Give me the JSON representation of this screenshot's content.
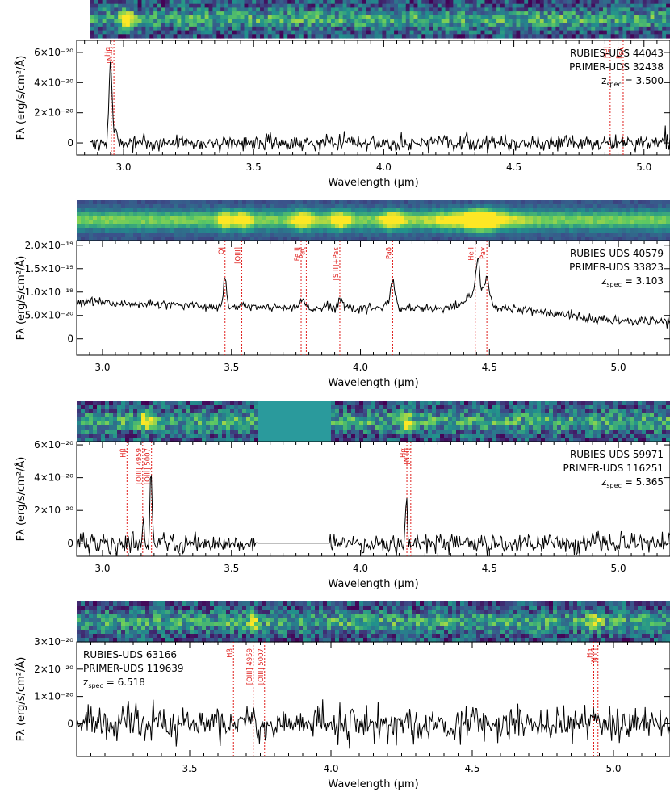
{
  "colors": {
    "spectrum": "#000000",
    "line_marker": "#e0201e",
    "masked_region": "#2a9a9c"
  },
  "chart_data": [
    {
      "type": "line",
      "name_lines": [
        "RUBIES-UDS 44043",
        "PRIMER-UDS 32438"
      ],
      "z_prefix": "z",
      "z_sub": "spec",
      "z_value": "= 3.500",
      "info_position": "top-right",
      "xlabel": "Wavelength (μm)",
      "ylabel": "Fλ (erg/s/cm²/Å)",
      "xlim": [
        2.82,
        5.1
      ],
      "ylim": [
        -8e-21,
        6.8e-20
      ],
      "xticks": [
        3.0,
        3.5,
        4.0,
        4.5,
        5.0
      ],
      "xtick_labels": [
        "3.0",
        "3.5",
        "4.0",
        "4.5",
        "5.0"
      ],
      "yticks": [
        0,
        2e-20,
        4e-20,
        6e-20
      ],
      "ytick_labels": [
        "0",
        "2×10⁻²⁰",
        "4×10⁻²⁰",
        "6×10⁻²⁰"
      ],
      "spectrum_range": [
        2.87,
        5.1
      ],
      "features": [
        {
          "w": 2.95,
          "h": 5.3e-20,
          "s": 0.006
        },
        {
          "w": 2.972,
          "h": 1e-20,
          "s": 0.005
        }
      ],
      "continuum": [
        [
          2.87,
          0.0
        ],
        [
          5.1,
          0.0
        ]
      ],
      "noise": 2.5e-21,
      "seed": 11,
      "masked": [],
      "lines": [
        {
          "w": 2.953,
          "label": "Hα"
        },
        {
          "w": 2.963,
          "label": "[N II]"
        },
        {
          "w": 4.87,
          "label": "HeI"
        },
        {
          "w": 4.92,
          "label": "Paγ"
        }
      ]
    },
    {
      "type": "line",
      "name_lines": [
        "RUBIES-UDS 40579",
        "PRIMER-UDS 33823"
      ],
      "z_prefix": "z",
      "z_sub": "spec",
      "z_value": "= 3.103",
      "info_position": "top-right",
      "xlabel": "Wavelength (μm)",
      "ylabel": "Fλ (erg/s/cm²/Å)",
      "xlim": [
        2.9,
        5.2
      ],
      "ylim": [
        -3.5e-20,
        2.1e-19
      ],
      "xticks": [
        3.0,
        3.5,
        4.0,
        4.5,
        5.0
      ],
      "xtick_labels": [
        "3.0",
        "3.5",
        "4.0",
        "4.5",
        "5.0"
      ],
      "yticks": [
        0,
        5e-20,
        1e-19,
        1.5e-19,
        2e-19
      ],
      "ytick_labels": [
        "0",
        "5.0×10⁻²⁰",
        "1.0×10⁻¹⁹",
        "1.5×10⁻¹⁹",
        "2.0×10⁻¹⁹"
      ],
      "spectrum_range": [
        2.9,
        5.2
      ],
      "features": [
        {
          "w": 3.475,
          "h": 6.2e-20,
          "s": 0.006
        },
        {
          "w": 3.545,
          "h": 1.2e-20,
          "s": 0.008
        },
        {
          "w": 3.775,
          "h": 1.4e-20,
          "s": 0.01
        },
        {
          "w": 3.92,
          "h": 2e-20,
          "s": 0.009
        },
        {
          "w": 4.125,
          "h": 5.5e-20,
          "s": 0.01
        },
        {
          "w": 4.44,
          "h": 3e-20,
          "s": 0.035
        },
        {
          "w": 4.455,
          "h": 7.5e-20,
          "s": 0.008
        },
        {
          "w": 4.49,
          "h": 5.5e-20,
          "s": 0.01
        }
      ],
      "continuum": [
        [
          2.9,
          7.8e-20
        ],
        [
          3.5,
          6.8e-20
        ],
        [
          4.0,
          6.4e-20
        ],
        [
          4.6,
          6.5e-20
        ],
        [
          4.9,
          4.2e-20
        ],
        [
          5.2,
          3.8e-20
        ]
      ],
      "noise": 5e-21,
      "seed": 23,
      "masked": [],
      "lines": [
        {
          "w": 3.475,
          "label": "OI"
        },
        {
          "w": 3.54,
          "label": "[OIII]"
        },
        {
          "w": 3.77,
          "label": "Fe II"
        },
        {
          "w": 3.79,
          "label": "Paζ"
        },
        {
          "w": 3.92,
          "label": "[S II]+Paε"
        },
        {
          "w": 4.125,
          "label": "Paδ"
        },
        {
          "w": 4.445,
          "label": "He I"
        },
        {
          "w": 4.49,
          "label": "Paγ"
        }
      ]
    },
    {
      "type": "line",
      "name_lines": [
        "RUBIES-UDS 59971",
        "PRIMER-UDS 116251"
      ],
      "z_prefix": "z",
      "z_sub": "spec",
      "z_value": "= 5.365",
      "info_position": "top-right",
      "xlabel": "Wavelength (μm)",
      "ylabel": "Fλ (erg/s/cm²/Å)",
      "xlim": [
        2.9,
        5.2
      ],
      "ylim": [
        -8e-21,
        6.2e-20
      ],
      "xticks": [
        3.0,
        3.5,
        4.0,
        4.5,
        5.0
      ],
      "xtick_labels": [
        "3.0",
        "3.5",
        "4.0",
        "4.5",
        "5.0"
      ],
      "yticks": [
        0,
        2e-20,
        4e-20,
        6e-20
      ],
      "ytick_labels": [
        "0",
        "2×10⁻²⁰",
        "4×10⁻²⁰",
        "6×10⁻²⁰"
      ],
      "spectrum_range": [
        2.9,
        5.2
      ],
      "features": [
        {
          "w": 3.158,
          "h": 1.2e-20,
          "s": 0.004
        },
        {
          "w": 3.188,
          "h": 4.8e-20,
          "s": 0.004
        },
        {
          "w": 4.178,
          "h": 2.9e-20,
          "s": 0.004
        }
      ],
      "continuum": [
        [
          2.9,
          0.0
        ],
        [
          5.2,
          0.0
        ]
      ],
      "noise": 3e-21,
      "seed": 37,
      "masked": [
        [
          3.6,
          3.88
        ]
      ],
      "lines": [
        {
          "w": 3.095,
          "label": "Hβ"
        },
        {
          "w": 3.156,
          "label": "[OIII] 4959"
        },
        {
          "w": 3.19,
          "label": "[OIII] 5007"
        },
        {
          "w": 4.18,
          "label": "Hα"
        },
        {
          "w": 4.195,
          "label": "[N II]"
        }
      ]
    },
    {
      "type": "line",
      "name_lines": [
        "RUBIES-UDS 63166",
        "PRIMER-UDS 119639"
      ],
      "z_prefix": "z",
      "z_sub": "spec",
      "z_value": "= 6.518",
      "info_position": "top-left",
      "xlabel": "Wavelength (μm)",
      "ylabel": "Fλ (erg/s/cm²/Å)",
      "xlim": [
        3.1,
        5.2
      ],
      "ylim": [
        -1.2e-20,
        3e-20
      ],
      "xticks": [
        3.5,
        4.0,
        4.5,
        5.0
      ],
      "xtick_labels": [
        "3.5",
        "4.0",
        "4.5",
        "5.0"
      ],
      "yticks": [
        0,
        1e-20,
        2e-20,
        3e-20
      ],
      "ytick_labels": [
        "0",
        "1×10⁻²⁰",
        "2×10⁻²⁰",
        "3×10⁻²⁰"
      ],
      "spectrum_range": [
        3.1,
        5.2
      ],
      "features": [
        {
          "w": 3.728,
          "h": 6e-21,
          "s": 0.004
        },
        {
          "w": 4.93,
          "h": 6e-21,
          "s": 0.005
        }
      ],
      "continuum": [
        [
          3.1,
          0.0
        ],
        [
          5.2,
          0.0
        ]
      ],
      "noise": 3.2e-21,
      "seed": 53,
      "masked": [],
      "lines": [
        {
          "w": 3.655,
          "label": "Hβ"
        },
        {
          "w": 3.725,
          "label": "[OIII] 4959"
        },
        {
          "w": 3.765,
          "label": "[OIII] 5007"
        },
        {
          "w": 4.93,
          "label": "Hα"
        },
        {
          "w": 4.945,
          "label": "[N II]"
        }
      ]
    }
  ]
}
